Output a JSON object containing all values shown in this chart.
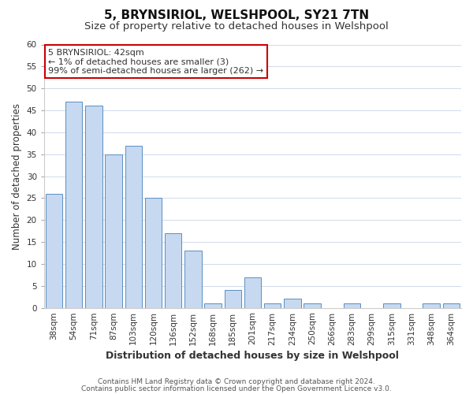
{
  "title": "5, BRYNSIRIOL, WELSHPOOL, SY21 7TN",
  "subtitle": "Size of property relative to detached houses in Welshpool",
  "xlabel": "Distribution of detached houses by size in Welshpool",
  "ylabel": "Number of detached properties",
  "bar_labels": [
    "38sqm",
    "54sqm",
    "71sqm",
    "87sqm",
    "103sqm",
    "120sqm",
    "136sqm",
    "152sqm",
    "168sqm",
    "185sqm",
    "201sqm",
    "217sqm",
    "234sqm",
    "250sqm",
    "266sqm",
    "283sqm",
    "299sqm",
    "315sqm",
    "331sqm",
    "348sqm",
    "364sqm"
  ],
  "bar_values": [
    26,
    47,
    46,
    35,
    37,
    25,
    17,
    13,
    1,
    4,
    7,
    1,
    2,
    1,
    0,
    1,
    0,
    1,
    0,
    1,
    1
  ],
  "bar_color": "#c6d9f0",
  "bar_edge_color": "#5a8fc3",
  "ylim": [
    0,
    60
  ],
  "yticks": [
    0,
    5,
    10,
    15,
    20,
    25,
    30,
    35,
    40,
    45,
    50,
    55,
    60
  ],
  "annotation_line1": "5 BRYNSIRIOL: 42sqm",
  "annotation_line2": "← 1% of detached houses are smaller (3)",
  "annotation_line3": "99% of semi-detached houses are larger (262) →",
  "annotation_box_edge_color": "#cc0000",
  "footer_line1": "Contains HM Land Registry data © Crown copyright and database right 2024.",
  "footer_line2": "Contains public sector information licensed under the Open Government Licence v3.0.",
  "bg_color": "#ffffff",
  "grid_color": "#d0daea",
  "title_fontsize": 11,
  "subtitle_fontsize": 9.5,
  "xlabel_fontsize": 9,
  "ylabel_fontsize": 8.5,
  "tick_fontsize": 7.5,
  "annotation_fontsize": 8,
  "footer_fontsize": 6.5
}
